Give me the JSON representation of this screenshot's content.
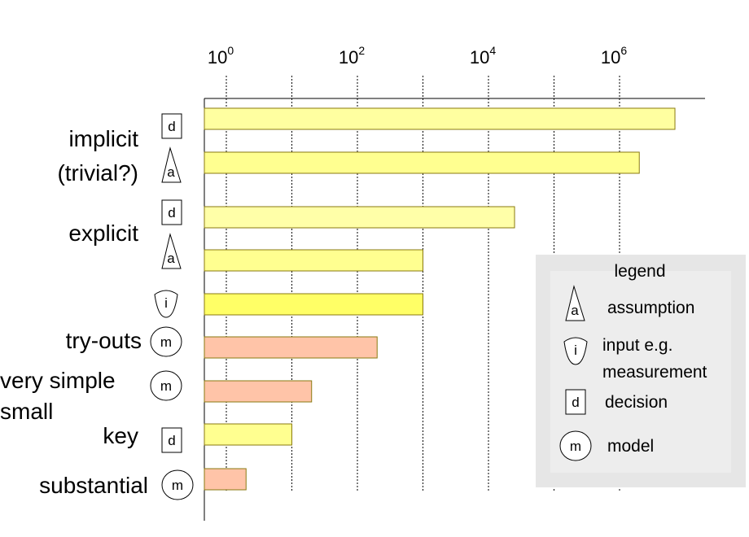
{
  "chart_data": {
    "type": "bar",
    "orientation": "horizontal",
    "x_scale": "log",
    "xlim": [
      0.1,
      10000000
    ],
    "x_ticks": [
      {
        "value": 1,
        "base": "10",
        "exp": "0"
      },
      {
        "value": 100,
        "base": "10",
        "exp": "2"
      },
      {
        "value": 10000,
        "base": "10",
        "exp": "4"
      },
      {
        "value": 1000000,
        "base": "10",
        "exp": "6"
      }
    ],
    "gridlines": [
      1,
      10,
      100,
      1000,
      10000,
      100000,
      1000000
    ],
    "bars": [
      {
        "symbol": "decision",
        "letter": "d",
        "value": 7000000,
        "color": "#ffffa0"
      },
      {
        "symbol": "assumption",
        "letter": "a",
        "value": 2000000,
        "color": "#ffff90"
      },
      {
        "symbol": "decision",
        "letter": "d",
        "value": 25000,
        "color": "#ffffa8"
      },
      {
        "symbol": "assumption",
        "letter": "a",
        "value": 1000,
        "color": "#ffff90"
      },
      {
        "symbol": "input",
        "letter": "i",
        "value": 1000,
        "color": "#ffff66"
      },
      {
        "symbol": "model",
        "letter": "m",
        "value": 200,
        "color": "#ffc4a8"
      },
      {
        "symbol": "model",
        "letter": "m",
        "value": 20,
        "color": "#ffc4a8"
      },
      {
        "symbol": "decision",
        "letter": "d",
        "value": 10,
        "color": "#ffff90"
      },
      {
        "symbol": "model",
        "letter": "m",
        "value": 2,
        "color": "#ffc4a8"
      }
    ],
    "category_labels": [
      {
        "lines": [
          "implicit",
          "(trivial?)"
        ]
      },
      {
        "lines": [
          "explicit"
        ]
      },
      {
        "lines": [
          "try-outs"
        ]
      },
      {
        "lines": [
          "very simple",
          "small"
        ]
      },
      {
        "lines": [
          "key"
        ]
      },
      {
        "lines": [
          "substantial"
        ]
      }
    ],
    "legend": {
      "title": "legend",
      "placement": "bottom-right",
      "items": [
        {
          "symbol": "assumption",
          "letter": "a",
          "lines": [
            "assumption"
          ]
        },
        {
          "symbol": "input",
          "letter": "i",
          "lines": [
            "input e.g.",
            "measurement"
          ]
        },
        {
          "symbol": "decision",
          "letter": "d",
          "lines": [
            "decision"
          ]
        },
        {
          "symbol": "model",
          "letter": "m",
          "lines": [
            "model"
          ]
        }
      ]
    }
  }
}
